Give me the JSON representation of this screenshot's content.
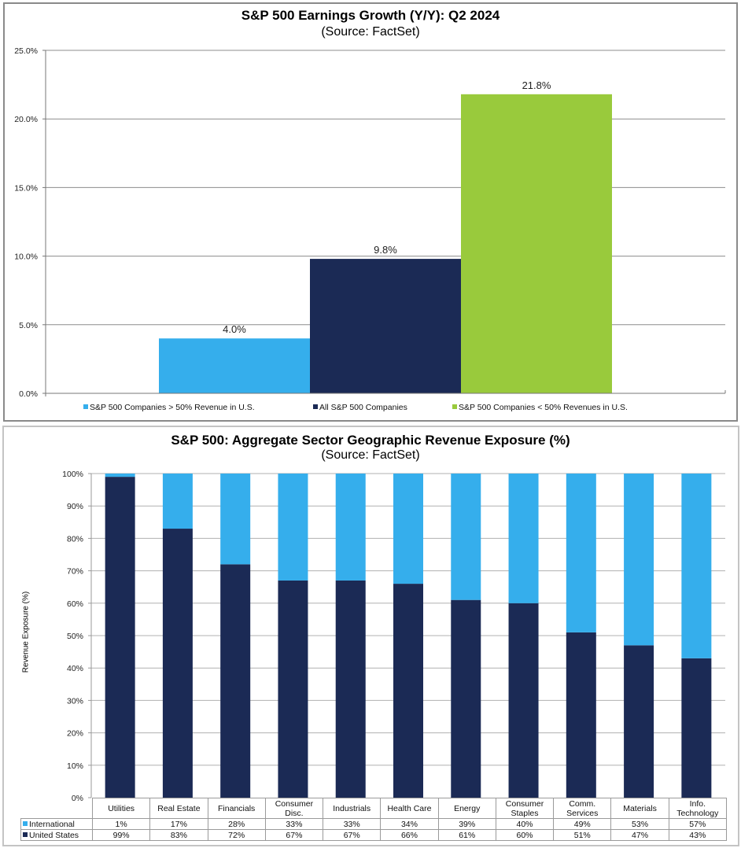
{
  "chart_data": [
    {
      "type": "bar",
      "title": "S&P 500 Earnings Growth (Y/Y): Q2 2024",
      "subtitle": "(Source: FactSet)",
      "xlabel": "",
      "ylabel": "",
      "ylim": [
        0,
        25
      ],
      "yticks": [
        0,
        5,
        10,
        15,
        20,
        25
      ],
      "ytick_labels": [
        "0.0%",
        "5.0%",
        "10.0%",
        "15.0%",
        "20.0%",
        "25.0%"
      ],
      "grid": true,
      "legend_position": "bottom",
      "series": [
        {
          "name": "S&P 500 Companies > 50% Revenue in U.S.",
          "values": [
            4.0
          ],
          "label": "4.0%",
          "color": "#35AEEC"
        },
        {
          "name": "All S&P 500 Companies",
          "values": [
            9.8
          ],
          "label": "9.8%",
          "color": "#1B2A55"
        },
        {
          "name": "S&P 500 Companies < 50% Revenues in U.S.",
          "values": [
            21.8
          ],
          "label": "21.8%",
          "color": "#99CA3C"
        }
      ]
    },
    {
      "type": "bar",
      "stacked": true,
      "title": "S&P 500: Aggregate Sector Geographic Revenue Exposure (%)",
      "subtitle": "(Source: FactSet)",
      "xlabel": "",
      "ylabel": "Revenue Exposure (%)",
      "ylim": [
        0,
        100
      ],
      "yticks": [
        0,
        10,
        20,
        30,
        40,
        50,
        60,
        70,
        80,
        90,
        100
      ],
      "ytick_labels": [
        "0%",
        "10%",
        "20%",
        "30%",
        "40%",
        "50%",
        "60%",
        "70%",
        "80%",
        "90%",
        "100%"
      ],
      "grid": true,
      "legend_position": "data-table",
      "categories": [
        "Utilities",
        "Real Estate",
        "Financials",
        "Consumer Disc.",
        "Industrials",
        "Health Care",
        "Energy",
        "Consumer Staples",
        "Comm. Services",
        "Materials",
        "Info. Technology"
      ],
      "category_lines": [
        [
          "Utilities"
        ],
        [
          "Real Estate"
        ],
        [
          "Financials"
        ],
        [
          "Consumer",
          "Disc."
        ],
        [
          "Industrials"
        ],
        [
          "Health Care"
        ],
        [
          "Energy"
        ],
        [
          "Consumer",
          "Staples"
        ],
        [
          "Comm.",
          "Services"
        ],
        [
          "Materials"
        ],
        [
          "Info.",
          "Technology"
        ]
      ],
      "series": [
        {
          "name": "International",
          "values": [
            1,
            17,
            28,
            33,
            33,
            34,
            39,
            40,
            49,
            53,
            57
          ],
          "labels": [
            "1%",
            "17%",
            "28%",
            "33%",
            "33%",
            "34%",
            "39%",
            "40%",
            "49%",
            "53%",
            "57%"
          ],
          "color": "#35AEEC"
        },
        {
          "name": "United States",
          "values": [
            99,
            83,
            72,
            67,
            67,
            66,
            61,
            60,
            51,
            47,
            43
          ],
          "labels": [
            "99%",
            "83%",
            "72%",
            "67%",
            "67%",
            "66%",
            "61%",
            "60%",
            "51%",
            "47%",
            "43%"
          ],
          "color": "#1B2A55"
        }
      ]
    }
  ]
}
